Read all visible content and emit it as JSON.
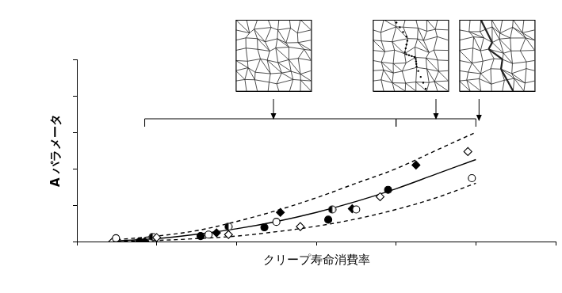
{
  "chart_data": {
    "type": "scatter",
    "x_label": "クリープ寿命消費率",
    "y_label": "A パラメータ",
    "xlim": [
      0,
      1.2
    ],
    "xticks": [
      0,
      0.2,
      0.4,
      0.6,
      0.8,
      1.0,
      1.2
    ],
    "ylim": [
      0,
      5
    ],
    "yticks": [
      0,
      1,
      2,
      3,
      4,
      5
    ],
    "tick_labels": false,
    "grid": false,
    "stages": [
      {
        "from": 0.17,
        "to": 0.8
      },
      {
        "from": 0.8,
        "to": 1.0
      },
      {
        "from": 1.0,
        "to": 1.0
      }
    ],
    "series": [
      {
        "type": "scatter",
        "marker": "circle_open",
        "color": "#000000",
        "x": [
          0.098,
          0.33,
          0.5,
          0.7,
          0.99
        ],
        "values": [
          0.09,
          0.19,
          0.54,
          0.88,
          1.74
        ]
      },
      {
        "type": "scatter",
        "marker": "circle",
        "color": "#000000",
        "x": [
          0.157,
          0.31,
          0.47,
          0.63,
          0.78
        ],
        "values": [
          0,
          0.15,
          0.39,
          0.6,
          1.42
        ]
      },
      {
        "type": "scatter",
        "marker": "diamond",
        "color": "#000000",
        "x": [
          0.17,
          0.35,
          0.51,
          0.69,
          0.85
        ],
        "values": [
          0,
          0.24,
          0.8,
          0.9,
          2.1
        ]
      },
      {
        "type": "scatter",
        "marker": "diamond_open",
        "color": "#000000",
        "x": [
          0.09,
          0.2,
          0.38,
          0.56,
          0.76,
          0.98
        ],
        "values": [
          0,
          0.11,
          0.19,
          0.41,
          1.23,
          2.47
        ]
      },
      {
        "type": "scatter",
        "marker": "circle_half",
        "color": "#000000",
        "x": [
          0.19,
          0.38,
          0.64
        ],
        "values": [
          0.13,
          0.41,
          0.88
        ]
      },
      {
        "type": "line",
        "marker": "none",
        "line_style": "solid",
        "color": "#000000",
        "x": [
          0.1,
          0.2,
          0.3,
          0.4,
          0.5,
          0.6,
          0.7,
          0.8,
          0.9,
          1.0
        ],
        "values": [
          0.02,
          0.08,
          0.2,
          0.35,
          0.55,
          0.8,
          1.1,
          1.45,
          1.85,
          2.25
        ]
      },
      {
        "type": "line",
        "marker": "none",
        "line_style": "dashed",
        "color": "#000000",
        "x": [
          0.1,
          0.2,
          0.3,
          0.4,
          0.5,
          0.6,
          0.7,
          0.8,
          0.9,
          1.0
        ],
        "values": [
          0.05,
          0.15,
          0.3,
          0.55,
          0.85,
          1.2,
          1.6,
          2.0,
          2.5,
          3.0
        ]
      },
      {
        "type": "line",
        "marker": "none",
        "line_style": "dashed",
        "color": "#000000",
        "x": [
          0.1,
          0.2,
          0.3,
          0.4,
          0.5,
          0.6,
          0.7,
          0.8,
          0.9,
          1.0
        ],
        "values": [
          0,
          0.03,
          0.08,
          0.15,
          0.27,
          0.42,
          0.62,
          0.88,
          1.2,
          1.6
        ]
      }
    ]
  }
}
